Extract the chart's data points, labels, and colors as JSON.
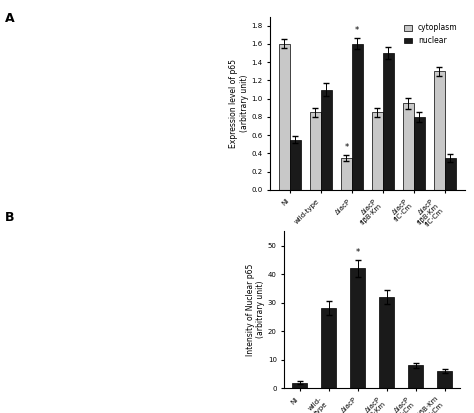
{
  "top_chart": {
    "title": "",
    "ylabel": "Expression level of p65\n(arbitrary unit)",
    "ylim": [
      0,
      1.9
    ],
    "yticks": [
      0.0,
      0.2,
      0.4,
      0.6,
      0.8,
      1.0,
      1.2,
      1.4,
      1.6,
      1.8
    ],
    "categories": [
      "NI",
      "wild-type",
      "ΔiacP",
      "ΔiacP\nflβB·Km",
      "ΔiacP\nflC·Cm",
      "ΔiacP\nflβB·Km\nflC·Cm"
    ],
    "cytoplasm_values": [
      1.6,
      0.85,
      0.35,
      0.85,
      0.95,
      1.3
    ],
    "nuclear_values": [
      0.55,
      1.1,
      1.6,
      1.5,
      0.8,
      0.35
    ],
    "cytoplasm_errors": [
      0.05,
      0.05,
      0.03,
      0.05,
      0.06,
      0.05
    ],
    "nuclear_errors": [
      0.04,
      0.07,
      0.06,
      0.07,
      0.05,
      0.04
    ],
    "cytoplasm_color": "#c8c8c8",
    "nuclear_color": "#1a1a1a",
    "legend_labels": [
      "cytoplasm",
      "nuclear"
    ],
    "star_positions": {
      "cytoplasm": [
        2
      ],
      "nuclear": [
        2
      ]
    },
    "bar_width": 0.35
  },
  "bottom_chart": {
    "title": "",
    "ylabel": "Intensity of Nuclear p65\n(arbitrary unit)",
    "ylim": [
      0,
      55
    ],
    "yticks": [
      0,
      10,
      20,
      30,
      40,
      50
    ],
    "categories": [
      "NI",
      "wild-\ntype",
      "ΔiacP",
      "ΔiacP\nflβB·Km",
      "ΔiacP\nflC·Cm",
      "ΔiacP flβB·Km\nflC·Cm"
    ],
    "values": [
      2,
      28,
      42,
      32,
      8,
      6
    ],
    "errors": [
      0.5,
      2.5,
      3.0,
      2.5,
      1.0,
      0.8
    ],
    "bar_color": "#1a1a1a",
    "star_positions": [
      2
    ],
    "bar_width": 0.5
  },
  "background_color": "#ffffff",
  "label_A": "A",
  "label_B": "B",
  "fontsize_small": 5.5,
  "fontsize_axis": 5.5,
  "fontsize_tick": 5.0,
  "fontsize_legend": 5.5
}
